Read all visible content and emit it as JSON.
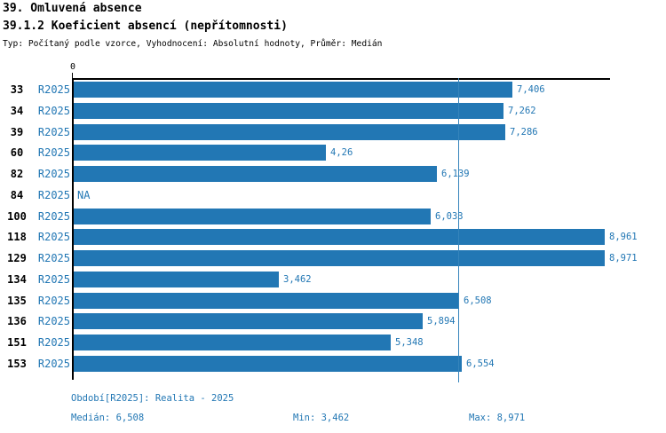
{
  "header": {
    "title1": "39. Omluvená absence",
    "title2": "39.1.2 Koeficient absencí (nepřítomnosti)",
    "subtitle": "Typ: Počítaný podle vzorce, Vyhodnocení: Absolutní hodnoty, Průměr: Medián"
  },
  "chart_data": {
    "type": "bar",
    "orientation": "horizontal",
    "title": "39.1.2 Koeficient absencí (nepřítomnosti)",
    "series_name": "R2025",
    "x_axis": {
      "zero_label": "0",
      "min": 0,
      "max": 9.06,
      "grid": false
    },
    "categories": [
      "33",
      "34",
      "39",
      "60",
      "82",
      "84",
      "100",
      "118",
      "129",
      "134",
      "135",
      "136",
      "151",
      "153"
    ],
    "rows": [
      {
        "category": "33",
        "period": "R2025",
        "value": 7.406,
        "value_label": "7,406"
      },
      {
        "category": "34",
        "period": "R2025",
        "value": 7.262,
        "value_label": "7,262"
      },
      {
        "category": "39",
        "period": "R2025",
        "value": 7.286,
        "value_label": "7,286"
      },
      {
        "category": "60",
        "period": "R2025",
        "value": 4.26,
        "value_label": "4,26"
      },
      {
        "category": "82",
        "period": "R2025",
        "value": 6.139,
        "value_label": "6,139"
      },
      {
        "category": "84",
        "period": "R2025",
        "value": null,
        "value_label": "NA"
      },
      {
        "category": "100",
        "period": "R2025",
        "value": 6.033,
        "value_label": "6,033"
      },
      {
        "category": "118",
        "period": "R2025",
        "value": 8.961,
        "value_label": "8,961"
      },
      {
        "category": "129",
        "period": "R2025",
        "value": 8.971,
        "value_label": "8,971"
      },
      {
        "category": "134",
        "period": "R2025",
        "value": 3.462,
        "value_label": "3,462"
      },
      {
        "category": "135",
        "period": "R2025",
        "value": 6.508,
        "value_label": "6,508"
      },
      {
        "category": "136",
        "period": "R2025",
        "value": 5.894,
        "value_label": "5,894"
      },
      {
        "category": "151",
        "period": "R2025",
        "value": 5.348,
        "value_label": "5,348"
      },
      {
        "category": "153",
        "period": "R2025",
        "value": 6.554,
        "value_label": "6,554"
      }
    ],
    "median": 6.508,
    "min": 3.462,
    "max": 8.971,
    "colors": {
      "bar": "#2277b4",
      "label_text": "#2277b4",
      "median_line": "#3584bb",
      "axis": "#000000"
    },
    "legend_position": "bottom"
  },
  "footer": {
    "period_label": "Období[R2025]: Realita - 2025",
    "median_label": "Medián: 6,508",
    "min_label": "Min: 3,462",
    "max_label": "Max: 8,971"
  }
}
